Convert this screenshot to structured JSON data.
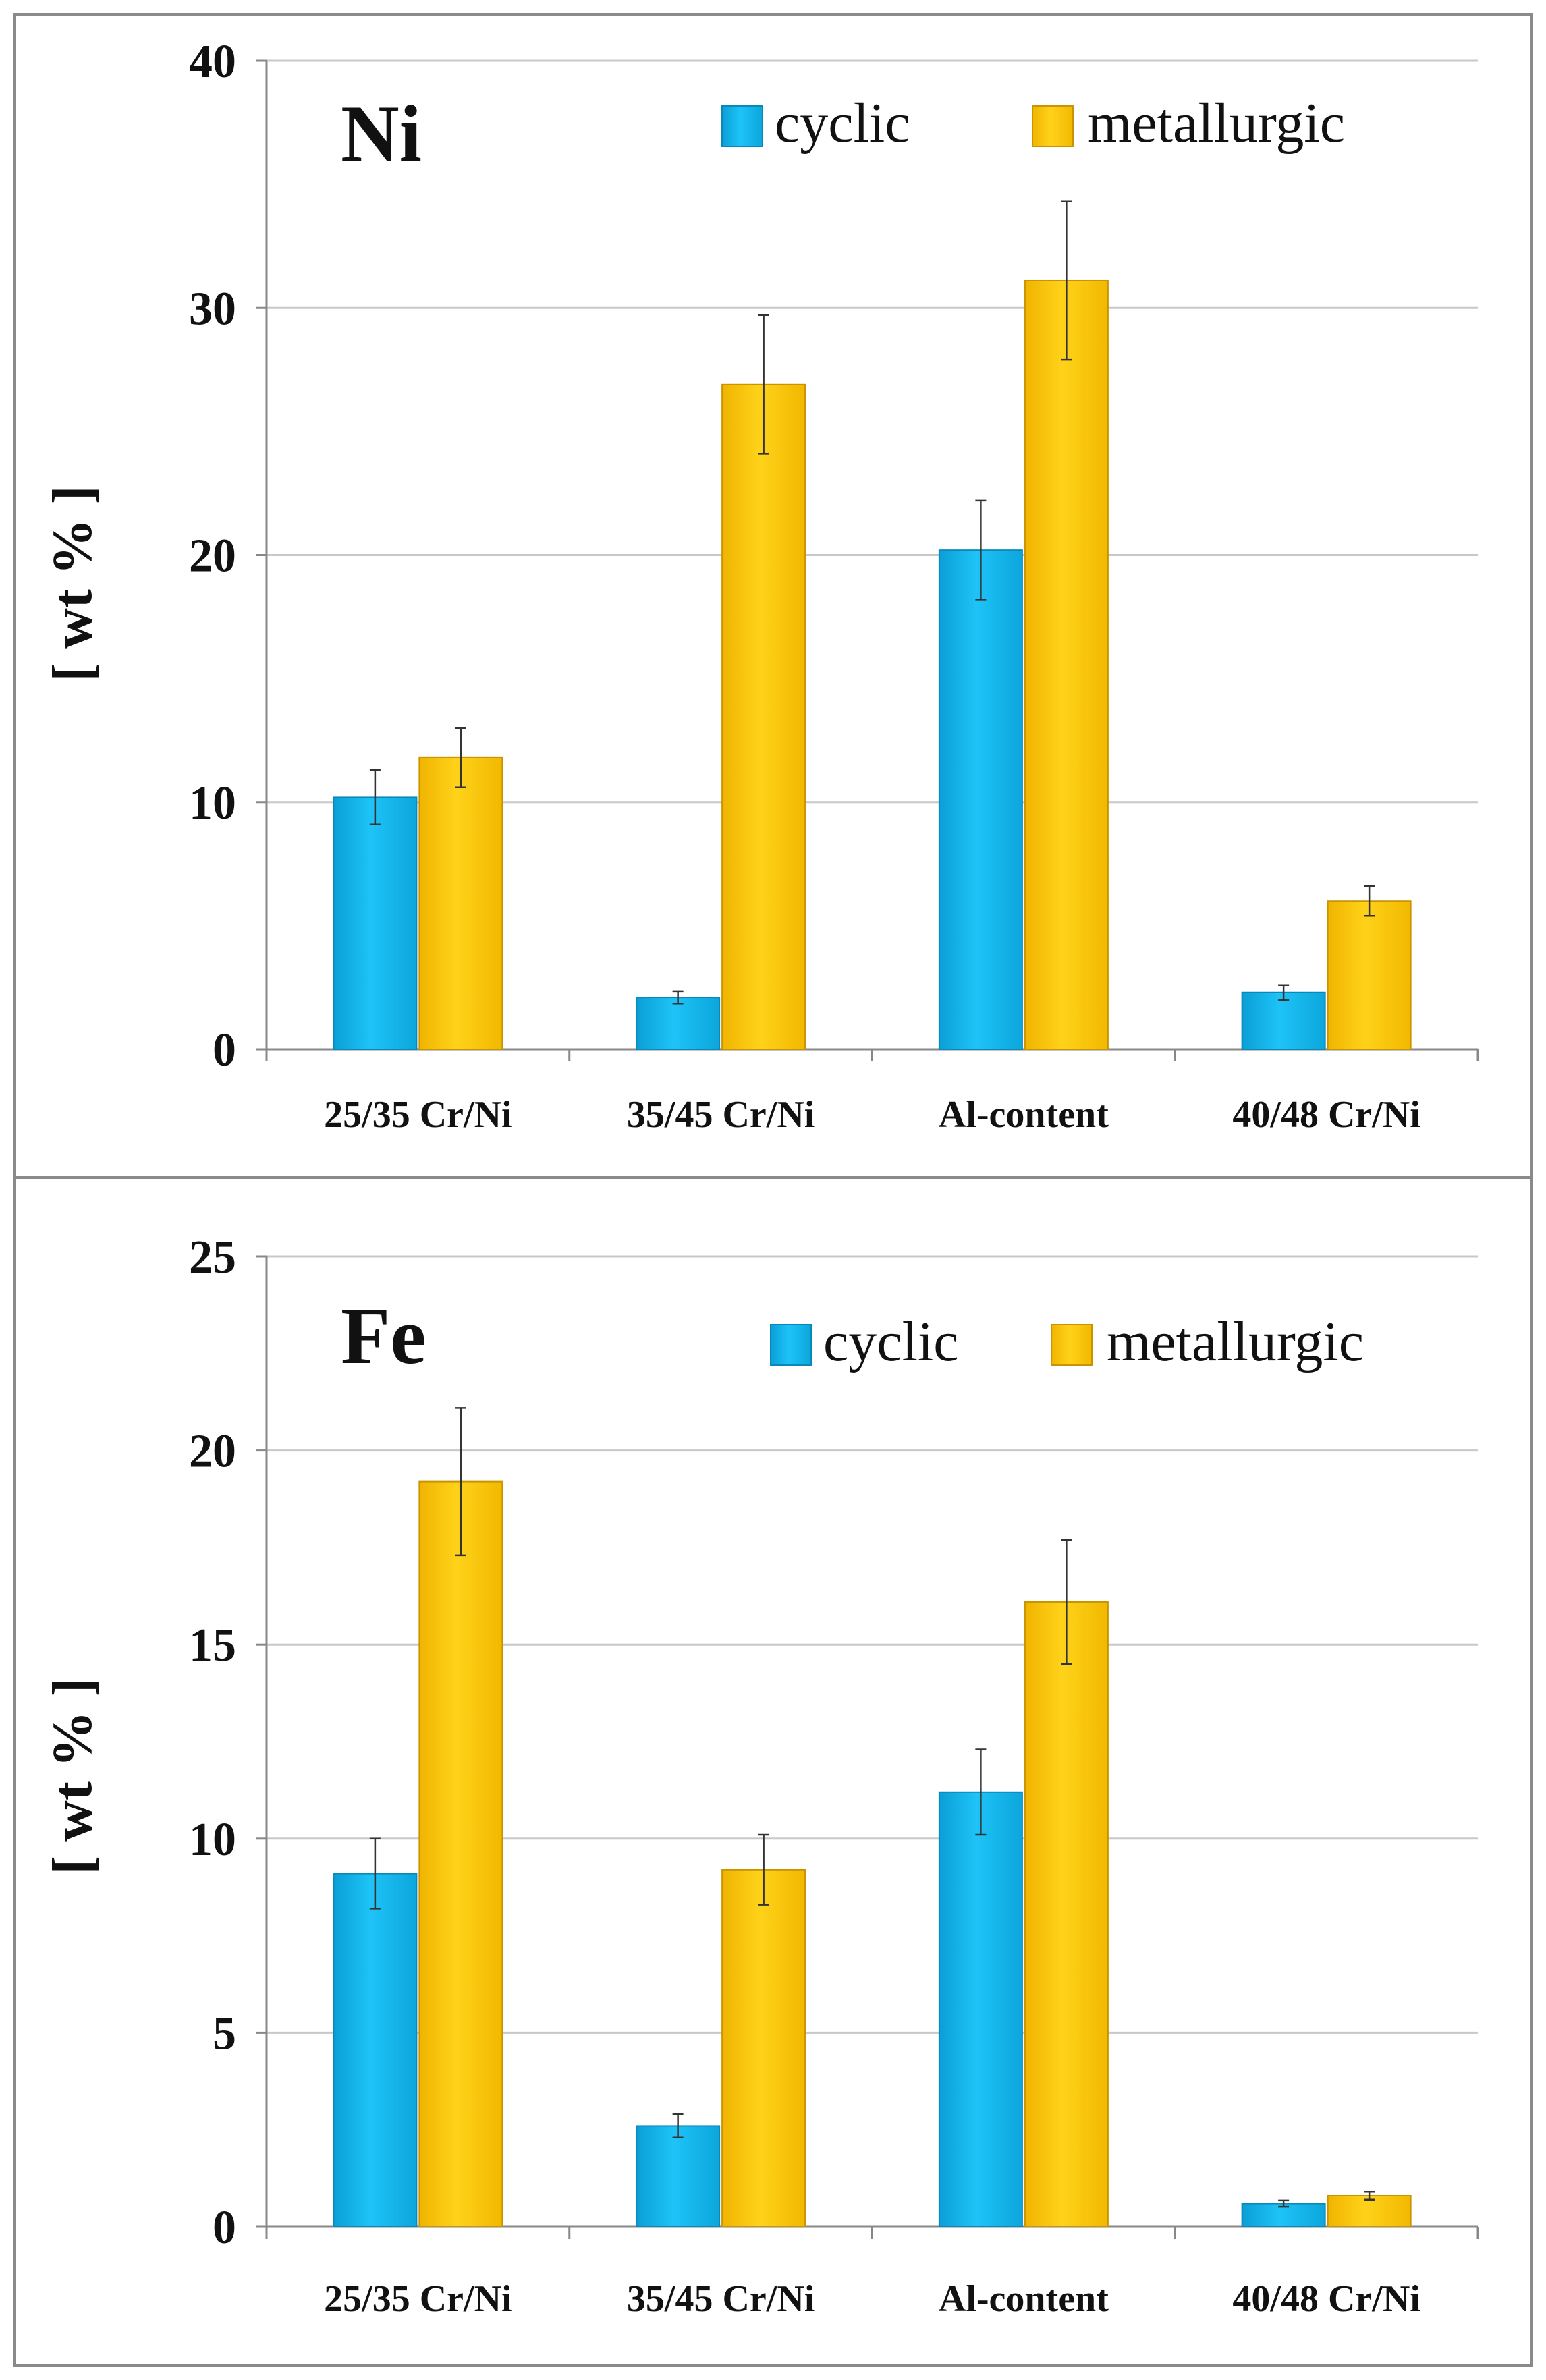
{
  "chart_data": [
    {
      "type": "bar",
      "title": "Ni",
      "ylabel": "[ wt % ]",
      "xlabel": "",
      "ylim": [
        0,
        40
      ],
      "yticks": [
        0,
        10,
        20,
        30,
        40
      ],
      "grid": true,
      "legend_position": "top-right",
      "categories": [
        "25/35 Cr/Ni",
        "35/45 Cr/Ni",
        "Al-content",
        "40/48 Cr/Ni"
      ],
      "series": [
        {
          "name": "cyclic",
          "color": "#12b8f0",
          "values": [
            10.2,
            2.1,
            20.2,
            2.3
          ],
          "errors": [
            1.1,
            0.25,
            2.0,
            0.3
          ]
        },
        {
          "name": "metallurgic",
          "color": "#ffc600",
          "values": [
            11.8,
            26.9,
            31.1,
            6.0
          ],
          "errors": [
            1.2,
            2.8,
            3.2,
            0.6
          ]
        }
      ]
    },
    {
      "type": "bar",
      "title": "Fe",
      "ylabel": "[ wt % ]",
      "xlabel": "",
      "ylim": [
        0,
        25
      ],
      "yticks": [
        0,
        5,
        10,
        15,
        20,
        25
      ],
      "grid": true,
      "legend_position": "top-right",
      "categories": [
        "25/35 Cr/Ni",
        "35/45 Cr/Ni",
        "Al-content",
        "40/48 Cr/Ni"
      ],
      "series": [
        {
          "name": "cyclic",
          "color": "#12b8f0",
          "values": [
            9.1,
            2.6,
            11.2,
            0.6
          ],
          "errors": [
            0.9,
            0.3,
            1.1,
            0.08
          ]
        },
        {
          "name": "metallurgic",
          "color": "#ffc600",
          "values": [
            19.2,
            9.2,
            16.1,
            0.8
          ],
          "errors": [
            1.9,
            0.9,
            1.6,
            0.1
          ]
        }
      ]
    }
  ]
}
